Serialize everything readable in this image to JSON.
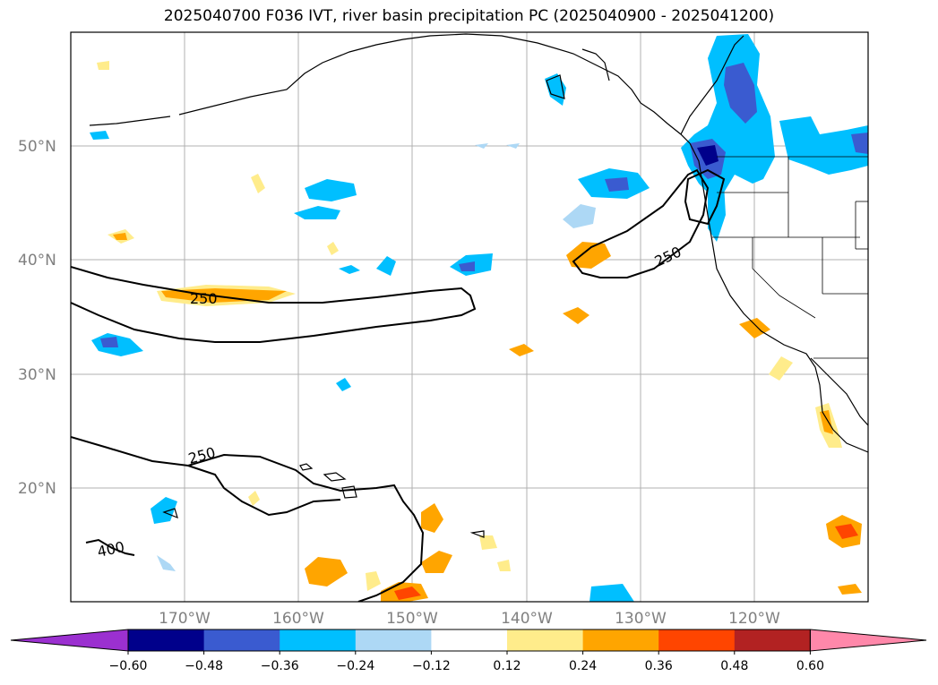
{
  "title": "2025040700 F036 IVT, river basin precipitation PC (2025040900 - 2025041200)",
  "lat_labels": [
    "50°N",
    "40°N",
    "30°N",
    "20°N"
  ],
  "lon_labels": [
    "170°W",
    "160°W",
    "150°W",
    "140°W",
    "130°W",
    "120°W"
  ],
  "contour_labels": [
    "250",
    "250",
    "250",
    "400"
  ],
  "colorbar": {
    "ticks": [
      "−0.60",
      "−0.48",
      "−0.36",
      "−0.24",
      "−0.12",
      "0.12",
      "0.24",
      "0.36",
      "0.48",
      "0.60"
    ],
    "colors": [
      "#9b30d0",
      "#00008b",
      "#3a5bd0",
      "#00bfff",
      "#add8f5",
      "#ffffff",
      "#ffec8b",
      "#ffa500",
      "#ff4500",
      "#b22222",
      "#ff88aa"
    ]
  },
  "colors": {
    "coast": "#000000",
    "grid": "#b0b0b0",
    "ivt_contour": "#000000"
  }
}
